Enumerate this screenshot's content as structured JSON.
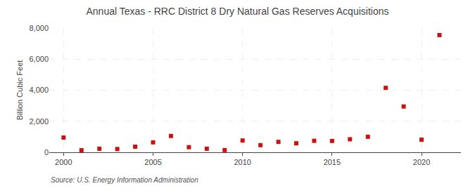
{
  "chart_data": {
    "type": "scatter",
    "title": "Annual Texas - RRC District 8 Dry Natural Gas Reserves Acquisitions",
    "ylabel": "Billion Cubic Feet",
    "annotations": [
      "Source: U.S. Energy Information Administration"
    ],
    "x": [
      2000,
      2001,
      2002,
      2003,
      2004,
      2005,
      2006,
      2007,
      2008,
      2009,
      2010,
      2011,
      2012,
      2013,
      2014,
      2015,
      2016,
      2017,
      2018,
      2019,
      2020,
      2021
    ],
    "values": [
      950,
      130,
      230,
      210,
      360,
      640,
      1050,
      330,
      230,
      140,
      760,
      460,
      670,
      580,
      740,
      730,
      840,
      1000,
      4150,
      2950,
      810,
      7550
    ],
    "color": "#cc1111",
    "marker": "square",
    "xlim": [
      1999.2,
      2022.2
    ],
    "xticks": [
      2000,
      2005,
      2010,
      2015,
      2020
    ],
    "ylim": [
      0,
      8000
    ],
    "yticks": [
      0,
      {
        "value": 2000,
        "label": "2,000"
      },
      {
        "value": 4000,
        "label": "4,000"
      },
      {
        "value": 6000,
        "label": "6,000"
      },
      {
        "value": 8000,
        "label": "8,000"
      }
    ],
    "grid": true
  }
}
